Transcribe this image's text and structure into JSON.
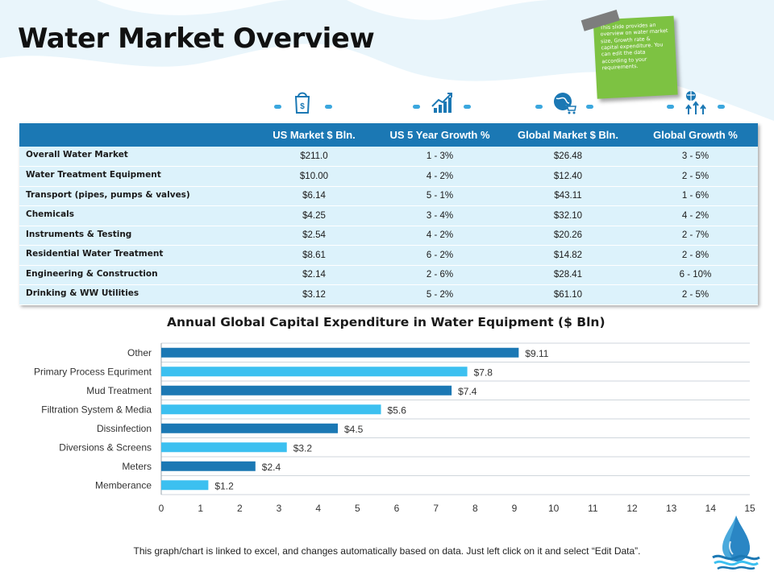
{
  "title": "Water Market Overview",
  "sticky_note": "This slide provides an overview on water market size, Growth rate & capital expenditure. You can edit the data according to your requirements.",
  "header_icons": [
    "dollar-bag-icon",
    "growth-chart-icon",
    "globe-cart-icon",
    "globe-arrows-icon"
  ],
  "table": {
    "columns": [
      "",
      "US Market $ Bln.",
      "US 5 Year Growth %",
      "Global Market $ Bln.",
      "Global Growth %"
    ],
    "rows": [
      [
        "Overall Water Market",
        "$211.0",
        "1 - 3%",
        "$26.48",
        "3 - 5%"
      ],
      [
        "Water Treatment Equipment",
        "$10.00",
        "4 - 2%",
        "$12.40",
        "2 - 5%"
      ],
      [
        "Transport (pipes, pumps & valves)",
        "$6.14",
        "5 - 1%",
        "$43.11",
        "1 - 6%"
      ],
      [
        "Chemicals",
        "$4.25",
        "3 - 4%",
        "$32.10",
        "4 - 2%"
      ],
      [
        "Instruments & Testing",
        "$2.54",
        "4 - 2%",
        "$20.26",
        "2 - 7%"
      ],
      [
        "Residential Water Treatment",
        "$8.61",
        "6 - 2%",
        "$14.82",
        "2 - 8%"
      ],
      [
        "Engineering & Construction",
        "$2.14",
        "2 - 6%",
        "$28.41",
        "6 - 10%"
      ],
      [
        "Drinking & WW Utilities",
        "$3.12",
        "5 - 2%",
        "$61.10",
        "2 - 5%"
      ]
    ]
  },
  "chart_data": {
    "type": "bar",
    "orientation": "horizontal",
    "title": "Annual Global Capital Expenditure in Water Equipment ($ Bln)",
    "categories": [
      "Other",
      "Primary Process Equriment",
      "Mud Treatment",
      "Filtration System & Media",
      "Dissinfection",
      "Diversions & Screens",
      "Meters",
      "Memberance"
    ],
    "values": [
      9.11,
      7.8,
      7.4,
      5.6,
      4.5,
      3.2,
      2.4,
      1.2
    ],
    "data_labels": [
      "$9.11",
      "$7.8",
      "$7.4",
      "$5.6",
      "$4.5",
      "$3.2",
      "$2.4",
      "$1.2"
    ],
    "bar_colors": [
      "#1b78b4",
      "#3cc0f0",
      "#1b78b4",
      "#3cc0f0",
      "#1b78b4",
      "#3cc0f0",
      "#1b78b4",
      "#3cc0f0"
    ],
    "xlim": [
      0,
      15
    ],
    "xticks": [
      0,
      1,
      2,
      3,
      4,
      5,
      6,
      7,
      8,
      9,
      10,
      11,
      12,
      13,
      14,
      15
    ],
    "grid": true,
    "legend": "none"
  },
  "footer": "This graph/chart is linked to excel, and changes automatically based on data. Just left click on it and select “Edit Data”.",
  "colors": {
    "header_blue": "#1b78b4",
    "row_bg": "#dcf2fb",
    "accent_light": "#3cc0f0",
    "note_green": "#7dc242"
  }
}
